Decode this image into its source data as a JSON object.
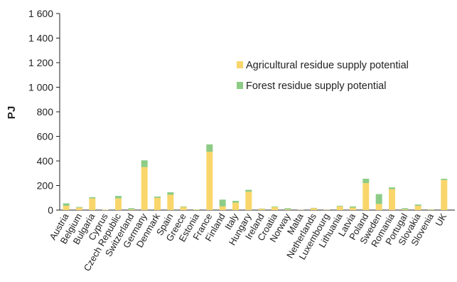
{
  "chart_data": {
    "type": "bar",
    "stacked": true,
    "ylabel": "PJ",
    "ylim": [
      0,
      1600
    ],
    "yticks": [
      0,
      200,
      400,
      600,
      800,
      1000,
      1200,
      1400,
      1600
    ],
    "ytick_labels": [
      "0",
      "200",
      "400",
      "600",
      "800",
      "1 000",
      "1 200",
      "1 400",
      "1 600"
    ],
    "grid": false,
    "legend_position": "upper-right-inside",
    "categories": [
      "Austria",
      "Belgium",
      "Bulgaria",
      "Cyprus",
      "Czech Republic",
      "Switzerland",
      "Germany",
      "Denmark",
      "Spain",
      "Greece",
      "Estonia",
      "France",
      "Finland",
      "Italy",
      "Hungary",
      "Ireland",
      "Croatia",
      "Norway",
      "Malta",
      "Netherlands",
      "Luxembourg",
      "Lithuania",
      "Latvia",
      "Poland",
      "Sweden",
      "Romania",
      "Portugal",
      "Slovakia",
      "Slovenia",
      "UK"
    ],
    "series": [
      {
        "name": "Agricultural residue supply potential",
        "color": "#f9d66b",
        "values": [
          35,
          20,
          95,
          3,
          95,
          5,
          350,
          100,
          125,
          25,
          3,
          475,
          30,
          60,
          150,
          10,
          25,
          5,
          2,
          15,
          2,
          30,
          20,
          220,
          50,
          170,
          5,
          35,
          3,
          245
        ]
      },
      {
        "name": "Forest residue supply potential",
        "color": "#8dcc86",
        "values": [
          20,
          5,
          10,
          0,
          20,
          10,
          55,
          10,
          20,
          5,
          2,
          60,
          55,
          15,
          15,
          3,
          5,
          10,
          0,
          3,
          0,
          5,
          10,
          35,
          80,
          15,
          10,
          10,
          3,
          10
        ]
      }
    ]
  }
}
